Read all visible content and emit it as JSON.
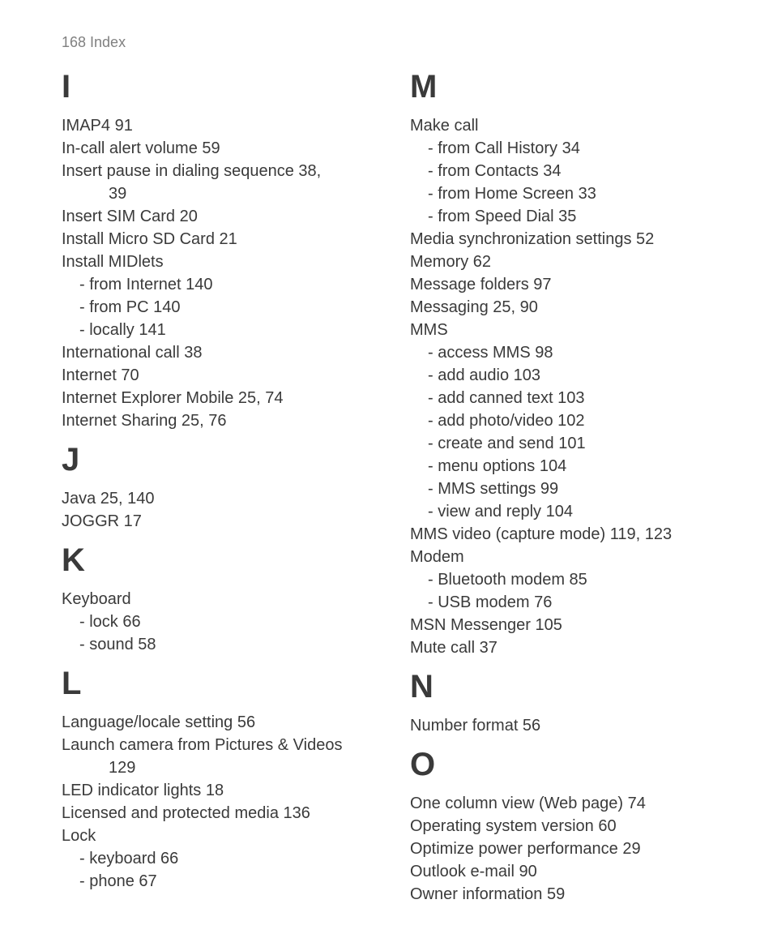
{
  "header": "168  Index",
  "left": {
    "I": {
      "letter": "I",
      "items": [
        "IMAP4  91",
        "In-call alert volume  59",
        "Insert pause in dialing sequence  38,",
        "39",
        "Insert SIM Card  20",
        "Install Micro SD Card  21",
        "Install MIDlets",
        "- from Internet  140",
        "- from PC  140",
        "- locally  141",
        "International call  38",
        "Internet  70",
        "Internet Explorer Mobile  25, 74",
        "Internet Sharing  25, 76"
      ],
      "indents": [
        0,
        0,
        0,
        2,
        0,
        0,
        0,
        1,
        1,
        1,
        0,
        0,
        0,
        0
      ]
    },
    "J": {
      "letter": "J",
      "items": [
        "Java  25, 140",
        "JOGGR  17"
      ],
      "indents": [
        0,
        0
      ]
    },
    "K": {
      "letter": "K",
      "items": [
        "Keyboard",
        "- lock  66",
        "- sound  58"
      ],
      "indents": [
        0,
        1,
        1
      ]
    },
    "L": {
      "letter": "L",
      "items": [
        "Language/locale setting  56",
        "Launch camera from Pictures & Videos",
        "129",
        "LED indicator lights  18",
        "Licensed and protected media  136",
        "Lock",
        "- keyboard  66",
        "- phone  67"
      ],
      "indents": [
        0,
        0,
        2,
        0,
        0,
        0,
        1,
        1
      ]
    }
  },
  "right": {
    "M": {
      "letter": "M",
      "items": [
        "Make call",
        "- from Call History  34",
        "- from Contacts  34",
        "- from Home Screen  33",
        "- from Speed Dial  35",
        "Media synchronization settings  52",
        "Memory  62",
        "Message folders  97",
        "Messaging  25, 90",
        "MMS",
        "- access MMS  98",
        "- add audio  103",
        "- add canned text  103",
        "- add photo/video  102",
        "- create and send  101",
        "- menu options  104",
        "- MMS settings  99",
        "- view and reply  104",
        "MMS video (capture mode)  119, 123",
        "Modem",
        "- Bluetooth modem  85",
        "- USB modem  76",
        "MSN Messenger  105",
        "Mute call  37"
      ],
      "indents": [
        0,
        1,
        1,
        1,
        1,
        0,
        0,
        0,
        0,
        0,
        1,
        1,
        1,
        1,
        1,
        1,
        1,
        1,
        0,
        0,
        1,
        1,
        0,
        0
      ]
    },
    "N": {
      "letter": "N",
      "items": [
        "Number format  56"
      ],
      "indents": [
        0
      ]
    },
    "O": {
      "letter": "O",
      "items": [
        "One column view (Web page)  74",
        "Operating system version  60",
        "Optimize power performance  29",
        "Outlook e-mail  90",
        "Owner information  59"
      ],
      "indents": [
        0,
        0,
        0,
        0,
        0
      ]
    }
  }
}
